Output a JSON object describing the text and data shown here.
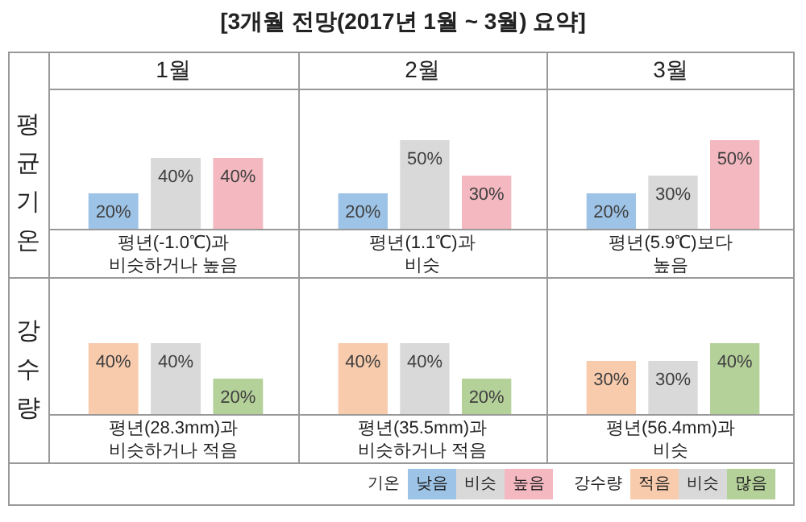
{
  "chart_data": [
    {
      "type": "other",
      "title": "[3개월 전망(2017년 1월 ~ 3월) 요약]"
    },
    {
      "type": "bar",
      "title": "1월",
      "ylabel": "평균기온",
      "categories": [
        null,
        null,
        null
      ],
      "values": [
        20,
        40,
        40
      ],
      "value_labels": [
        "20%",
        "40%",
        "40%"
      ],
      "colors": [
        "#9dc3e6",
        "#d9d9d9",
        "#f4b8c0"
      ],
      "tick_labels": false,
      "annotations": [
        "평년(-1.0℃)과\n비슷하거나 높음"
      ]
    },
    {
      "type": "bar",
      "title": "2월",
      "categories": [
        null,
        null,
        null
      ],
      "values": [
        20,
        50,
        30
      ],
      "value_labels": [
        "20%",
        "50%",
        "30%"
      ],
      "colors": [
        "#9dc3e6",
        "#d9d9d9",
        "#f4b8c0"
      ],
      "tick_labels": false,
      "annotations": [
        "평년(1.1℃)과\n비슷"
      ]
    },
    {
      "type": "bar",
      "title": "3월",
      "categories": [
        null,
        null,
        null
      ],
      "values": [
        20,
        30,
        50
      ],
      "value_labels": [
        "20%",
        "30%",
        "50%"
      ],
      "colors": [
        "#9dc3e6",
        "#d9d9d9",
        "#f4b8c0"
      ],
      "tick_labels": false,
      "annotations": [
        "평년(5.9℃)보다\n높음"
      ]
    },
    {
      "type": "bar",
      "ylabel": "강수량",
      "categories": [
        null,
        null,
        null
      ],
      "values": [
        40,
        40,
        20
      ],
      "value_labels": [
        "40%",
        "40%",
        "20%"
      ],
      "colors": [
        "#f8cbad",
        "#d9d9d9",
        "#b5d19a"
      ],
      "tick_labels": false,
      "annotations": [
        "평년(28.3mm)과\n비슷하거나 적음"
      ]
    },
    {
      "type": "bar",
      "categories": [
        null,
        null,
        null
      ],
      "values": [
        40,
        40,
        20
      ],
      "value_labels": [
        "40%",
        "40%",
        "20%"
      ],
      "colors": [
        "#f8cbad",
        "#d9d9d9",
        "#b5d19a"
      ],
      "tick_labels": false,
      "annotations": [
        "평년(35.5mm)과\n비슷하거나 적음"
      ]
    },
    {
      "type": "bar",
      "categories": [
        null,
        null,
        null
      ],
      "values": [
        30,
        30,
        40
      ],
      "value_labels": [
        "30%",
        "30%",
        "40%"
      ],
      "colors": [
        "#f8cbad",
        "#d9d9d9",
        "#b5d19a"
      ],
      "tick_labels": false,
      "annotations": [
        "평년(56.4mm)과\n비슷"
      ]
    },
    {
      "type": "other",
      "annotations": [
        "기온",
        "낮음",
        "비슷",
        "높음",
        "강수량",
        "적음",
        "비슷",
        "많음"
      ]
    }
  ]
}
